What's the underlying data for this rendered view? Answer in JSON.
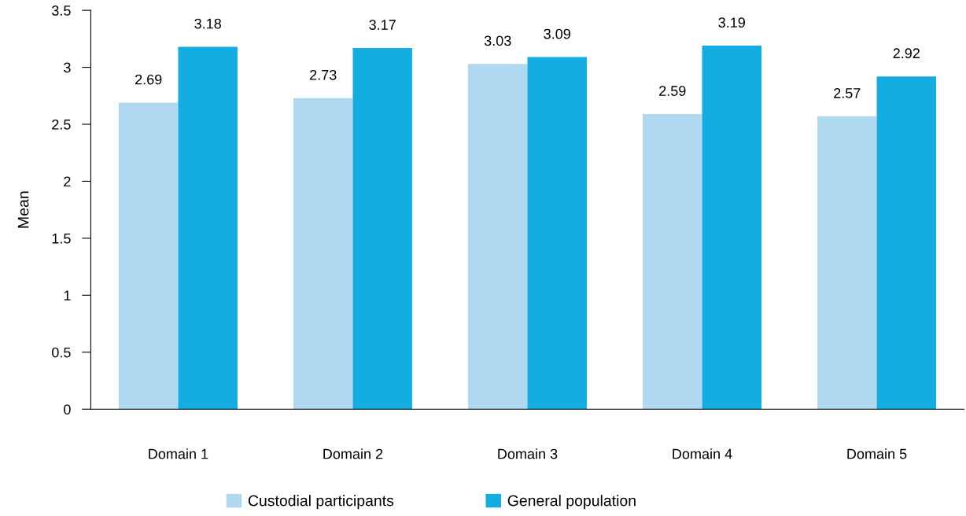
{
  "chart_data": {
    "type": "bar",
    "ylabel": "Mean",
    "categories": [
      "Domain 1",
      "Domain 2",
      "Domain 3",
      "Domain 4",
      "Domain 5"
    ],
    "series": [
      {
        "name": "Custodial participants",
        "color": "#b0d9f1",
        "values": [
          2.69,
          2.73,
          3.03,
          2.59,
          2.57
        ]
      },
      {
        "name": "General population",
        "color": "#14ade2",
        "values": [
          3.18,
          3.17,
          3.09,
          3.19,
          2.92
        ]
      }
    ],
    "ylim": [
      0,
      3.5
    ],
    "yticks": [
      0,
      0.5,
      1,
      1.5,
      2,
      2.5,
      3,
      3.5
    ],
    "grid": false,
    "legend": "bottom",
    "data_labels": true
  }
}
